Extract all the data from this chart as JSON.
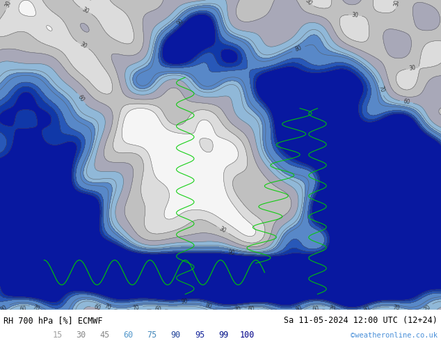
{
  "title_left": "RH 700 hPa [%] ECMWF",
  "title_right": "Sa 11-05-2024 12:00 UTC (12+24)",
  "watermark": "©weatheronline.co.uk",
  "legend_values": [
    "15",
    "30",
    "45",
    "60",
    "75",
    "90",
    "95",
    "99",
    "100"
  ],
  "legend_colors_text": [
    "#a0a0a0",
    "#888888",
    "#888888",
    "#5599cc",
    "#4488bb",
    "#224499",
    "#112299",
    "#001188",
    "#000088"
  ],
  "bottom_bar_color": "#ffffff",
  "figsize": [
    6.34,
    4.9
  ],
  "dpi": 100,
  "bottom_text_color": "#000000",
  "watermark_color": "#4a90d9",
  "label_font_size": 8.5,
  "title_font_size": 8.5,
  "map_colors": {
    "below15": "#f5f5f5",
    "15to30": "#e0e0e0",
    "30to45": "#c8c8c8",
    "45to60": "#b0b0b8",
    "60to75": "#90b8d8",
    "75to90": "#6090c8",
    "90to95": "#3060b8",
    "95to99": "#1040a8",
    "99to100": "#0820a0"
  },
  "contour_color": "#505050",
  "green_line_color": "#00cc00",
  "label_number_color": "#202020"
}
